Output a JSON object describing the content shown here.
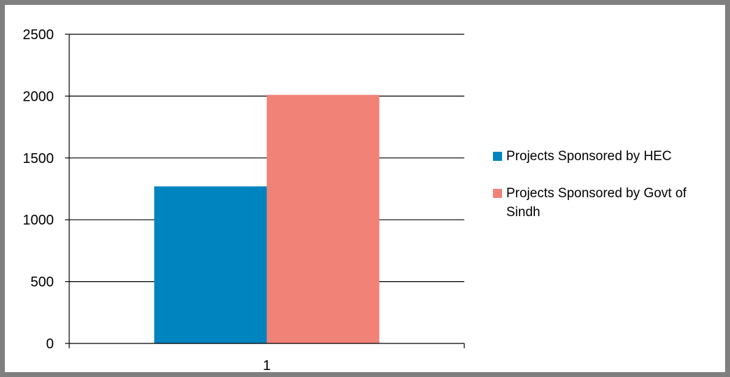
{
  "chart_data": {
    "type": "bar",
    "categories": [
      "1"
    ],
    "series": [
      {
        "name": "Projects Sponsored by HEC",
        "values": [
          1270
        ],
        "color": "#0084C0"
      },
      {
        "name": "Projects Sponsored by Govt of Sindh",
        "values": [
          2010
        ],
        "color": "#F08278"
      }
    ],
    "ylim": [
      0,
      2500
    ],
    "yticks": [
      "0",
      "500",
      "1000",
      "1500",
      "2000",
      "2500"
    ],
    "grid": true,
    "legend_position": "right"
  }
}
